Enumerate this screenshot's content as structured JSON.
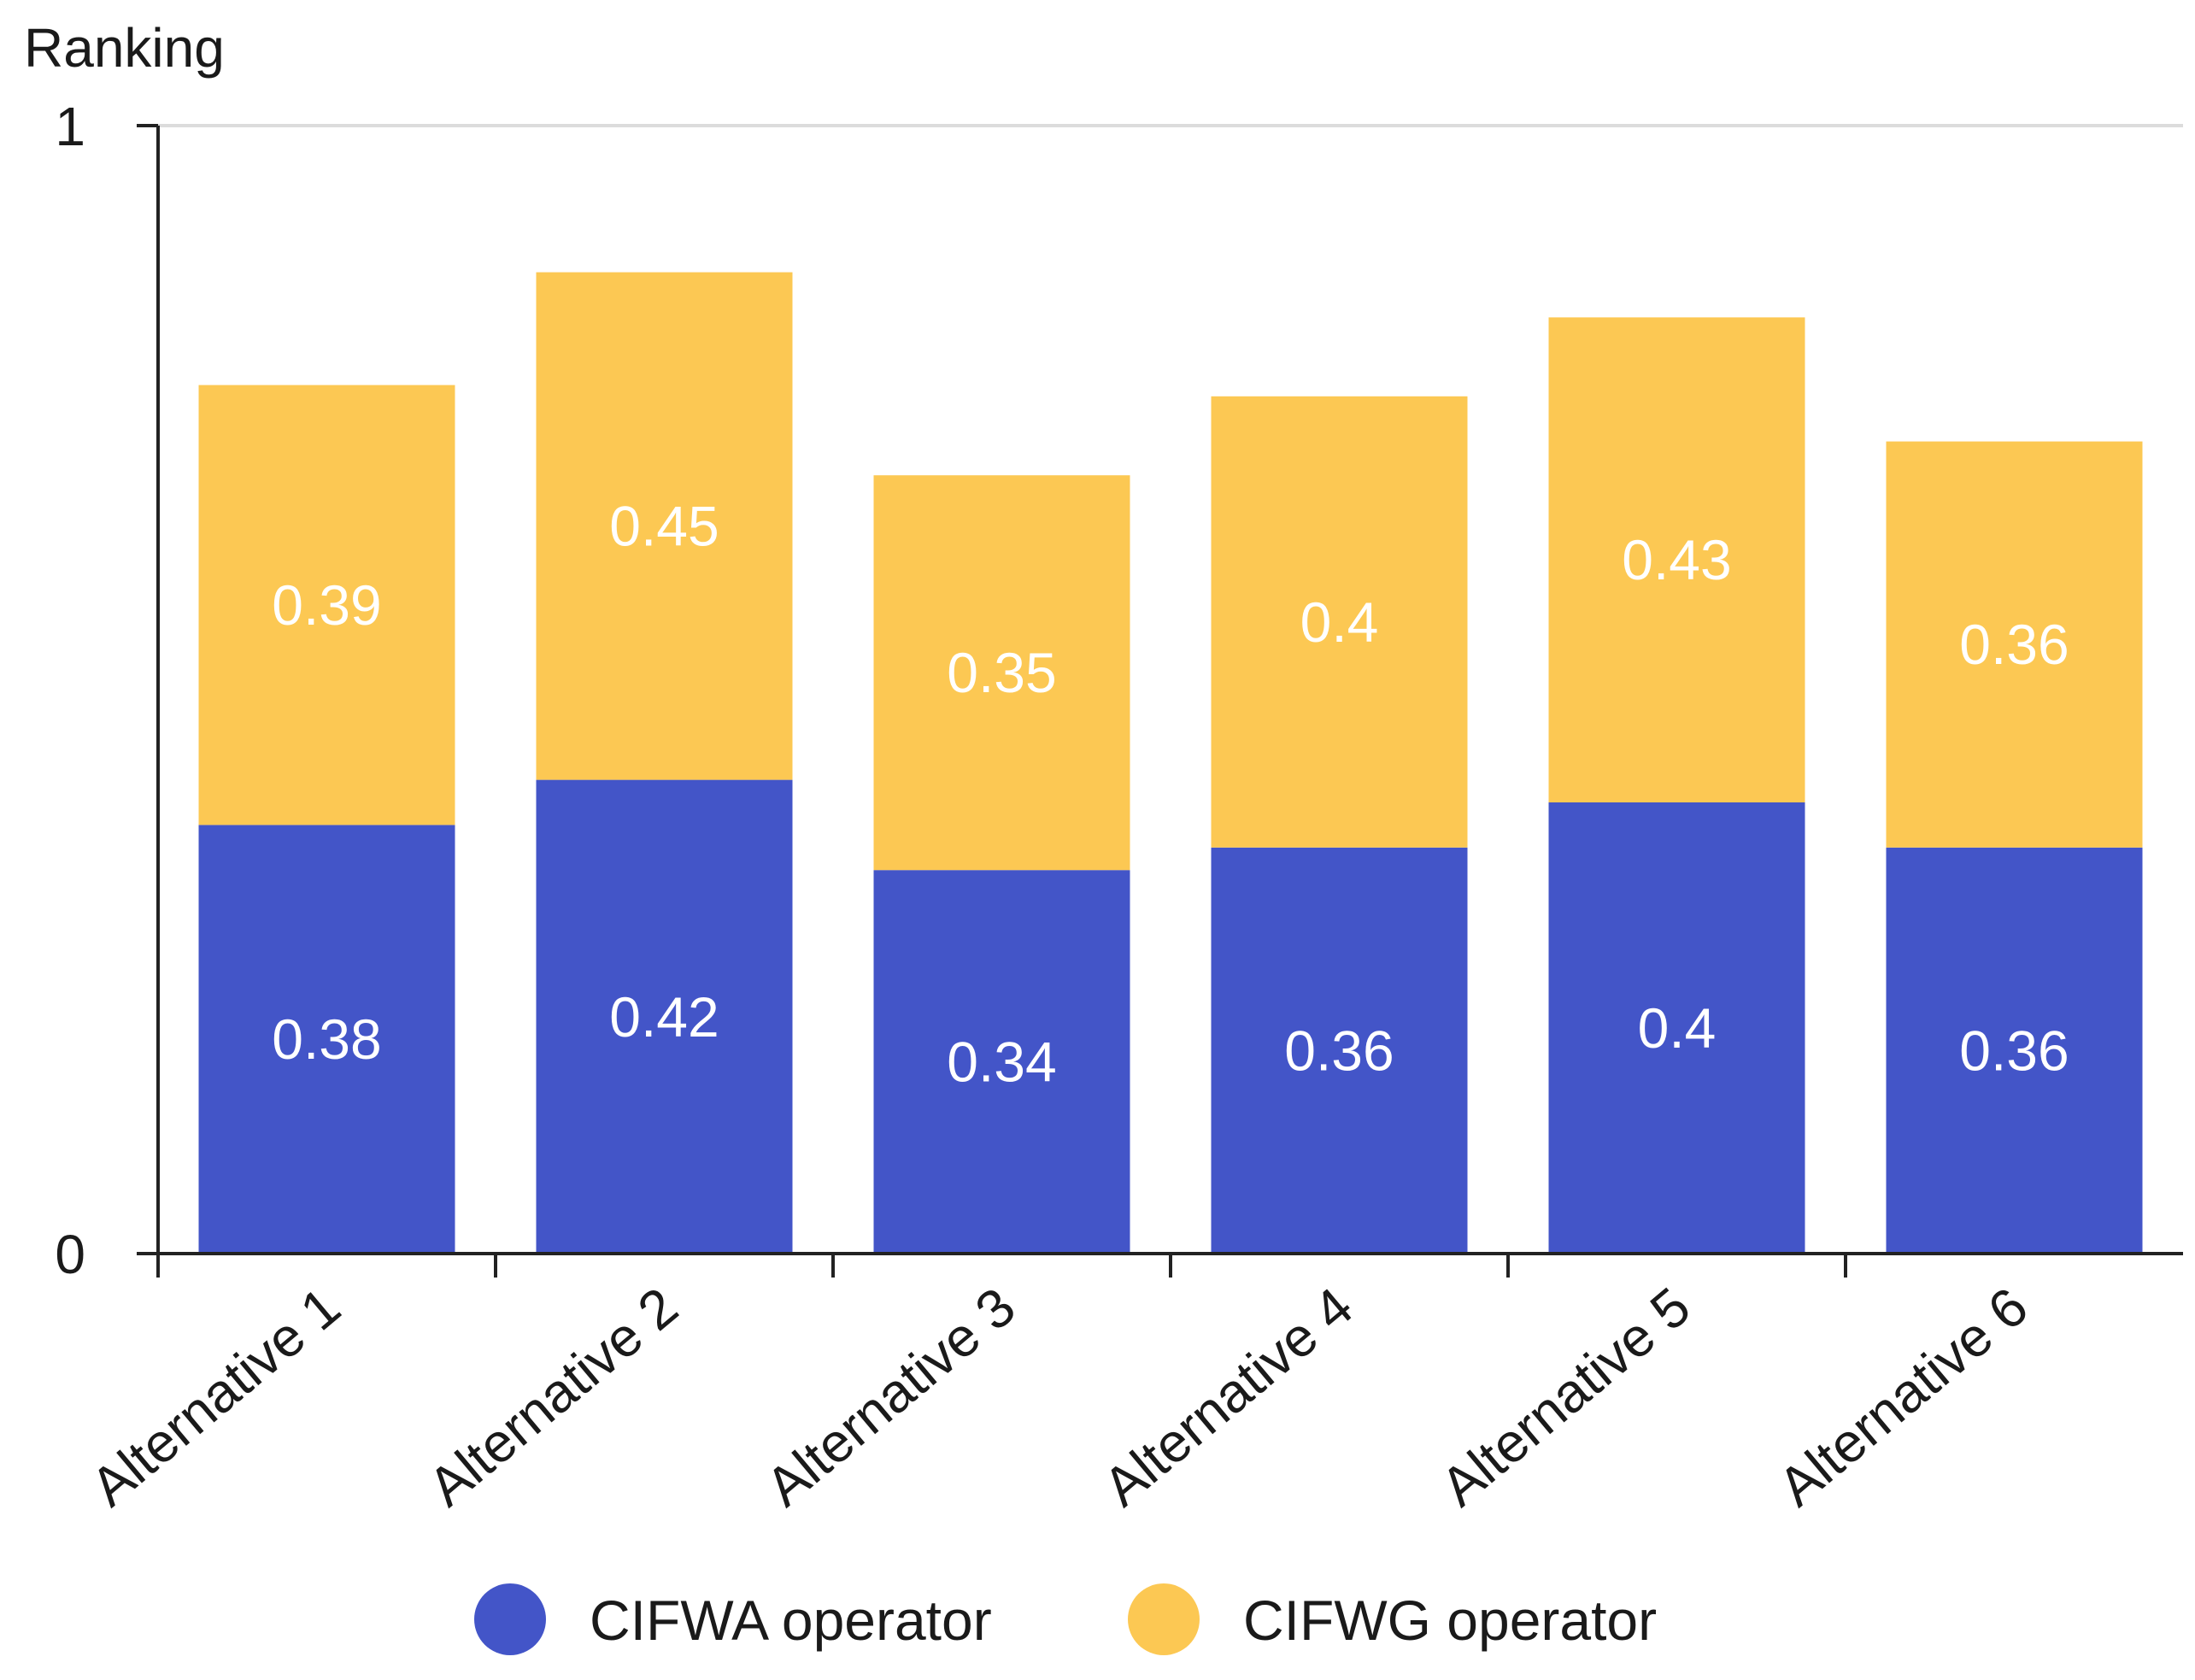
{
  "chart_data": {
    "type": "bar",
    "stacked": true,
    "title": "",
    "xlabel": "",
    "ylabel": "Ranking",
    "ylim": [
      0,
      1
    ],
    "yticks": [
      "0",
      "1"
    ],
    "categories": [
      "Alternative 1",
      "Alternative 2",
      "Alternative 3",
      "Alternative 4",
      "Alternative 5",
      "Alternative 6"
    ],
    "series": [
      {
        "name": "CIFWA operator",
        "color": "#4355c8",
        "values": [
          0.38,
          0.42,
          0.34,
          0.36,
          0.4,
          0.36
        ],
        "labels": [
          "0.38",
          "0.42",
          "0.34",
          "0.36",
          "0.4",
          "0.36"
        ]
      },
      {
        "name": "CIFWG operator",
        "color": "#fcc853",
        "values": [
          0.39,
          0.45,
          0.35,
          0.4,
          0.43,
          0.36
        ],
        "labels": [
          "0.39",
          "0.45",
          "0.35",
          "0.4",
          "0.43",
          "0.36"
        ]
      }
    ],
    "legend": "bottom",
    "grid": "top-only"
  }
}
